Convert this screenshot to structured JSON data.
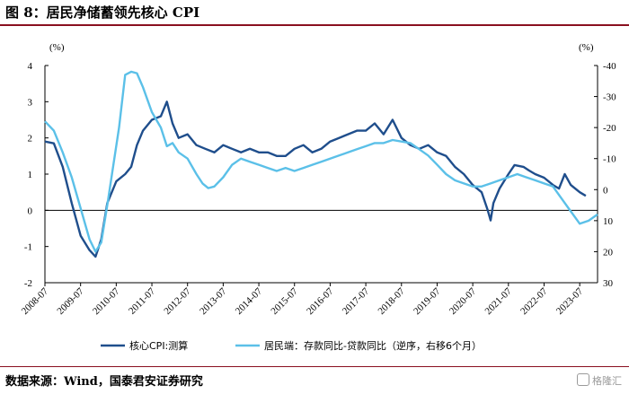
{
  "header": {
    "title": "图 8：居民净储蓄领先核心 CPI"
  },
  "footer": {
    "source": "数据来源：Wind，国泰君安证券研究",
    "watermark": "格隆汇"
  },
  "chart_data": {
    "type": "line",
    "left_axis": {
      "unit": "(%)",
      "min": -2,
      "max": 4,
      "ticks": [
        -2,
        -1,
        0,
        1,
        2,
        3,
        4
      ]
    },
    "right_axis": {
      "unit": "(%)",
      "min": -40,
      "max": 30,
      "inverted": true,
      "ticks": [
        -40,
        -30,
        -20,
        -10,
        0,
        10,
        20,
        30
      ]
    },
    "x_ticks": [
      "2008-07",
      "2009-07",
      "2010-07",
      "2011-07",
      "2012-07",
      "2013-07",
      "2014-07",
      "2015-07",
      "2016-07",
      "2017-07",
      "2018-07",
      "2019-07",
      "2020-07",
      "2021-07",
      "2022-07",
      "2023-07"
    ],
    "series": [
      {
        "name": "核心CPI:测算",
        "axis": "left",
        "color": "#1f4e8c",
        "points": [
          [
            2008.5,
            1.9
          ],
          [
            2008.75,
            1.85
          ],
          [
            2009.0,
            1.2
          ],
          [
            2009.25,
            0.2
          ],
          [
            2009.5,
            -0.7
          ],
          [
            2009.75,
            -1.1
          ],
          [
            2009.92,
            -1.28
          ],
          [
            2010.08,
            -0.8
          ],
          [
            2010.25,
            0.2
          ],
          [
            2010.5,
            0.8
          ],
          [
            2010.75,
            1.0
          ],
          [
            2010.92,
            1.2
          ],
          [
            2011.08,
            1.8
          ],
          [
            2011.25,
            2.2
          ],
          [
            2011.5,
            2.5
          ],
          [
            2011.75,
            2.6
          ],
          [
            2011.92,
            3.0
          ],
          [
            2012.08,
            2.4
          ],
          [
            2012.25,
            2.0
          ],
          [
            2012.5,
            2.1
          ],
          [
            2012.75,
            1.8
          ],
          [
            2013.0,
            1.7
          ],
          [
            2013.25,
            1.6
          ],
          [
            2013.5,
            1.8
          ],
          [
            2013.75,
            1.7
          ],
          [
            2014.0,
            1.6
          ],
          [
            2014.25,
            1.7
          ],
          [
            2014.5,
            1.6
          ],
          [
            2014.75,
            1.6
          ],
          [
            2015.0,
            1.5
          ],
          [
            2015.25,
            1.5
          ],
          [
            2015.5,
            1.7
          ],
          [
            2015.75,
            1.8
          ],
          [
            2016.0,
            1.6
          ],
          [
            2016.25,
            1.7
          ],
          [
            2016.5,
            1.9
          ],
          [
            2016.75,
            2.0
          ],
          [
            2017.0,
            2.1
          ],
          [
            2017.25,
            2.2
          ],
          [
            2017.5,
            2.2
          ],
          [
            2017.75,
            2.4
          ],
          [
            2018.0,
            2.1
          ],
          [
            2018.25,
            2.5
          ],
          [
            2018.5,
            2.0
          ],
          [
            2018.75,
            1.8
          ],
          [
            2019.0,
            1.7
          ],
          [
            2019.25,
            1.8
          ],
          [
            2019.5,
            1.6
          ],
          [
            2019.75,
            1.5
          ],
          [
            2020.0,
            1.2
          ],
          [
            2020.25,
            1.0
          ],
          [
            2020.5,
            0.7
          ],
          [
            2020.75,
            0.5
          ],
          [
            2020.92,
            0.0
          ],
          [
            2021.0,
            -0.28
          ],
          [
            2021.08,
            0.2
          ],
          [
            2021.25,
            0.6
          ],
          [
            2021.5,
            1.0
          ],
          [
            2021.67,
            1.25
          ],
          [
            2021.92,
            1.2
          ],
          [
            2022.08,
            1.1
          ],
          [
            2022.25,
            1.0
          ],
          [
            2022.5,
            0.9
          ],
          [
            2022.75,
            0.7
          ],
          [
            2022.92,
            0.6
          ],
          [
            2023.08,
            1.0
          ],
          [
            2023.25,
            0.7
          ],
          [
            2023.5,
            0.5
          ],
          [
            2023.67,
            0.4
          ]
        ]
      },
      {
        "name": "居民端：存款同比-贷款同比（逆序，右移6个月）",
        "axis": "right",
        "color": "#5bc0e8",
        "points": [
          [
            2008.5,
            -22
          ],
          [
            2008.75,
            -19
          ],
          [
            2009.0,
            -12
          ],
          [
            2009.25,
            -4
          ],
          [
            2009.5,
            6
          ],
          [
            2009.75,
            16
          ],
          [
            2009.92,
            20
          ],
          [
            2010.08,
            17
          ],
          [
            2010.25,
            5
          ],
          [
            2010.42,
            -8
          ],
          [
            2010.58,
            -20
          ],
          [
            2010.75,
            -37
          ],
          [
            2010.92,
            -38
          ],
          [
            2011.08,
            -37.5
          ],
          [
            2011.25,
            -33
          ],
          [
            2011.5,
            -25
          ],
          [
            2011.75,
            -20
          ],
          [
            2011.92,
            -14
          ],
          [
            2012.08,
            -15
          ],
          [
            2012.25,
            -12
          ],
          [
            2012.5,
            -10
          ],
          [
            2012.75,
            -5
          ],
          [
            2012.92,
            -2
          ],
          [
            2013.08,
            -0.5
          ],
          [
            2013.25,
            -1
          ],
          [
            2013.5,
            -4
          ],
          [
            2013.75,
            -8
          ],
          [
            2014.0,
            -10
          ],
          [
            2014.25,
            -9
          ],
          [
            2014.5,
            -8
          ],
          [
            2014.75,
            -7
          ],
          [
            2015.0,
            -6
          ],
          [
            2015.25,
            -7
          ],
          [
            2015.5,
            -6
          ],
          [
            2015.75,
            -7
          ],
          [
            2016.0,
            -8
          ],
          [
            2016.25,
            -9
          ],
          [
            2016.5,
            -10
          ],
          [
            2016.75,
            -11
          ],
          [
            2017.0,
            -12
          ],
          [
            2017.25,
            -13
          ],
          [
            2017.5,
            -14
          ],
          [
            2017.75,
            -15
          ],
          [
            2018.0,
            -15
          ],
          [
            2018.25,
            -16
          ],
          [
            2018.5,
            -15.5
          ],
          [
            2018.75,
            -15
          ],
          [
            2019.0,
            -13
          ],
          [
            2019.25,
            -11
          ],
          [
            2019.5,
            -8
          ],
          [
            2019.75,
            -5
          ],
          [
            2020.0,
            -3
          ],
          [
            2020.25,
            -2
          ],
          [
            2020.5,
            -1
          ],
          [
            2020.75,
            -1
          ],
          [
            2021.0,
            -2
          ],
          [
            2021.25,
            -3
          ],
          [
            2021.5,
            -4
          ],
          [
            2021.75,
            -5
          ],
          [
            2022.0,
            -4
          ],
          [
            2022.25,
            -3
          ],
          [
            2022.5,
            -2
          ],
          [
            2022.75,
            -1
          ],
          [
            2023.0,
            3
          ],
          [
            2023.25,
            7
          ],
          [
            2023.5,
            11
          ],
          [
            2023.75,
            10
          ],
          [
            2024.0,
            8
          ]
        ]
      }
    ]
  }
}
